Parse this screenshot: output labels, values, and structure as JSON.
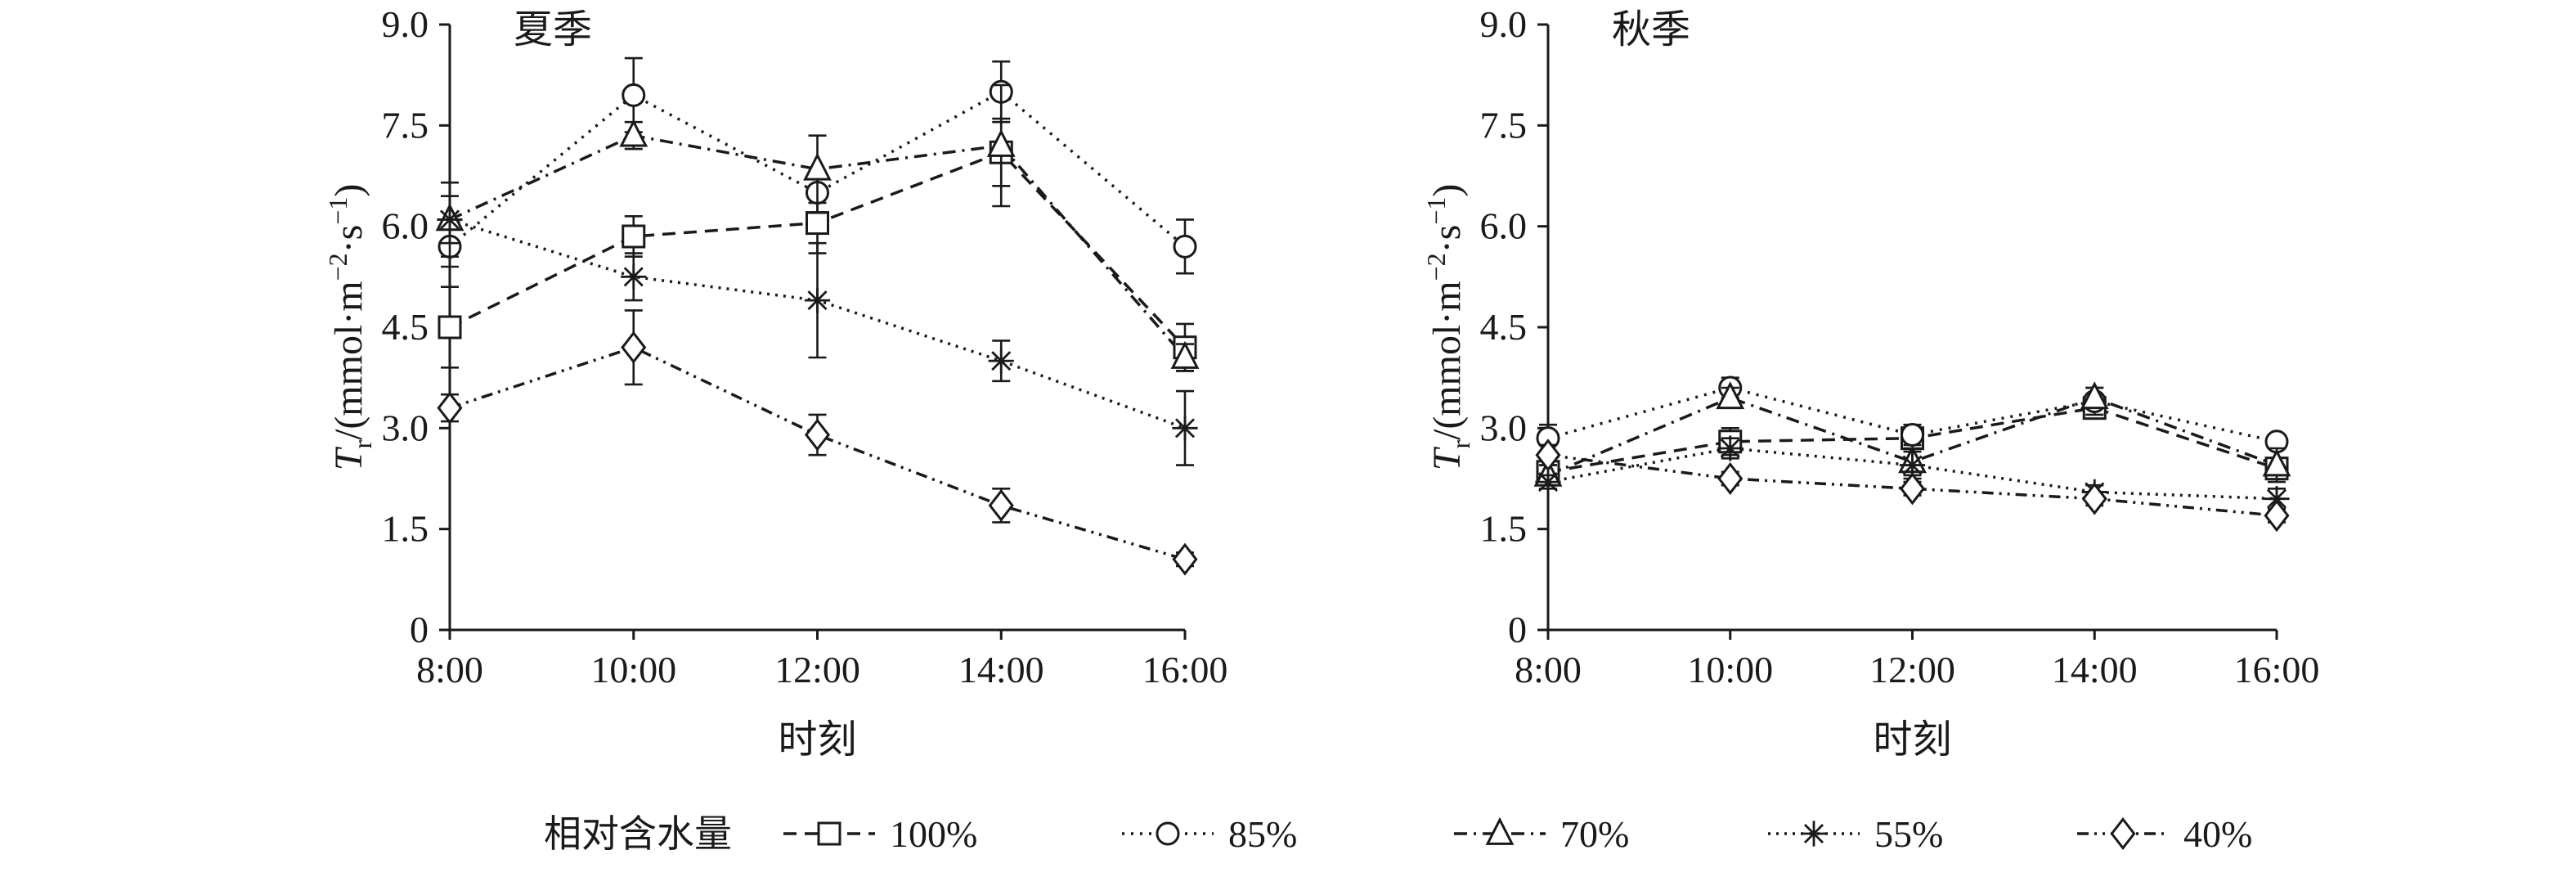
{
  "figure": {
    "background": "#ffffff",
    "line_color": "#1a1a1a"
  },
  "legend": {
    "title": "相对含水量"
  },
  "chart_data": [
    {
      "type": "line",
      "title": "夏季",
      "categories": [
        "8:00",
        "10:00",
        "12:00",
        "14:00",
        "16:00"
      ],
      "xlabel": "时刻",
      "ylabel": "Tr/(mmol·m−2·s−1)",
      "ylabel_rich": [
        {
          "t": "T",
          "s": "i"
        },
        {
          "t": "r",
          "s": "sub"
        },
        {
          "t": "/(mmol·m",
          "s": "n"
        },
        {
          "t": "−2",
          "s": "sup"
        },
        {
          "t": "·s",
          "s": "n"
        },
        {
          "t": "−1",
          "s": "sup"
        },
        {
          "t": ")",
          "s": "n"
        }
      ],
      "ylim": [
        0,
        9
      ],
      "yticks": [
        0,
        1.5,
        3,
        4.5,
        6,
        7.5,
        9
      ],
      "ytick_labels": [
        "0",
        "1.5",
        "3.0",
        "4.5",
        "6.0",
        "7.5",
        "9.0"
      ],
      "grid": false,
      "series": [
        {
          "name": "100%",
          "marker": "square",
          "line_style": "dashed",
          "values": [
            4.5,
            5.85,
            6.05,
            7.1,
            4.2
          ],
          "errors": [
            0.6,
            0.3,
            0.45,
            0.5,
            0.35
          ]
        },
        {
          "name": "85%",
          "marker": "circle",
          "line_style": "dotted",
          "values": [
            5.7,
            7.95,
            6.5,
            8.0,
            5.7
          ],
          "errors": [
            0.3,
            0.55,
            0.3,
            0.45,
            0.4
          ]
        },
        {
          "name": "70%",
          "marker": "triangle",
          "line_style": "dashdot",
          "values": [
            6.1,
            7.35,
            6.85,
            7.2,
            4.05
          ],
          "errors": [
            0.35,
            0.2,
            0.5,
            0.9,
            0.2
          ]
        },
        {
          "name": "55%",
          "marker": "asterisk",
          "line_style": "densedot",
          "values": [
            6.1,
            5.25,
            4.9,
            4.0,
            3.0
          ],
          "errors": [
            0.55,
            0.35,
            0.85,
            0.3,
            0.55
          ]
        },
        {
          "name": "40%",
          "marker": "diamond",
          "line_style": "dashdotdot",
          "values": [
            3.3,
            4.2,
            2.9,
            1.85,
            1.05
          ],
          "errors": [
            0.2,
            0.55,
            0.3,
            0.25,
            0.1
          ]
        }
      ]
    },
    {
      "type": "line",
      "title": "秋季",
      "categories": [
        "8:00",
        "10:00",
        "12:00",
        "14:00",
        "16:00"
      ],
      "xlabel": "时刻",
      "ylabel": "Tr/(mmol·m−2·s−1)",
      "ylabel_rich": [
        {
          "t": "T",
          "s": "i"
        },
        {
          "t": "r",
          "s": "sub"
        },
        {
          "t": "/(mmol·m",
          "s": "n"
        },
        {
          "t": "−2",
          "s": "sup"
        },
        {
          "t": "·s",
          "s": "n"
        },
        {
          "t": "−1",
          "s": "sup"
        },
        {
          "t": ")",
          "s": "n"
        }
      ],
      "ylim": [
        0,
        9
      ],
      "yticks": [
        0,
        1.5,
        3,
        4.5,
        6,
        7.5,
        9
      ],
      "ytick_labels": [
        "0",
        "1.5",
        "3.0",
        "4.5",
        "6.0",
        "7.5",
        "9.0"
      ],
      "grid": false,
      "series": [
        {
          "name": "100%",
          "marker": "square",
          "line_style": "dashed",
          "values": [
            2.35,
            2.8,
            2.85,
            3.3,
            2.4
          ],
          "errors": [
            0.15,
            0.2,
            0.15,
            0.15,
            0.1
          ]
        },
        {
          "name": "85%",
          "marker": "circle",
          "line_style": "dotted",
          "values": [
            2.85,
            3.6,
            2.9,
            3.4,
            2.8
          ],
          "errors": [
            0.2,
            0.15,
            0.15,
            0.2,
            0.1
          ]
        },
        {
          "name": "70%",
          "marker": "triangle",
          "line_style": "dashdot",
          "values": [
            2.3,
            3.45,
            2.5,
            3.45,
            2.45
          ],
          "errors": [
            0.15,
            0.15,
            0.2,
            0.15,
            0.25
          ]
        },
        {
          "name": "55%",
          "marker": "asterisk",
          "line_style": "densedot",
          "values": [
            2.2,
            2.7,
            2.45,
            2.05,
            1.95
          ],
          "errors": [
            0.1,
            0.15,
            0.2,
            0.1,
            0.15
          ]
        },
        {
          "name": "40%",
          "marker": "diamond",
          "line_style": "dashdotdot",
          "values": [
            2.6,
            2.25,
            2.1,
            1.95,
            1.7
          ],
          "errors": [
            0.15,
            0.1,
            0.1,
            0.1,
            0.1
          ]
        }
      ]
    }
  ]
}
